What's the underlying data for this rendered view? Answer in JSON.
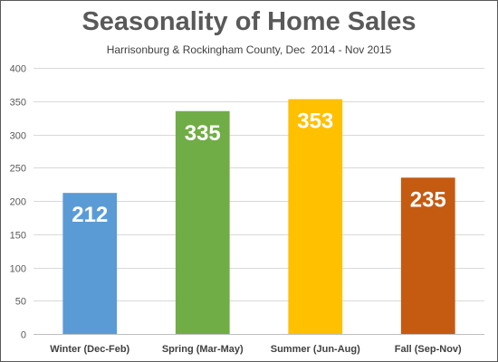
{
  "chart_data": {
    "type": "bar",
    "title": "Seasonality of Home Sales",
    "subtitle": "Harrisonburg & Rockingham County, Dec  2014 - Nov 2015",
    "categories": [
      "Winter (Dec-Feb)",
      "Spring (Mar-May)",
      "Summer (Jun-Aug)",
      "Fall (Sep-Nov)"
    ],
    "values": [
      212,
      335,
      353,
      235
    ],
    "colors": [
      "#5b9bd5",
      "#70ad47",
      "#ffc000",
      "#c55a11"
    ],
    "ylim": [
      0,
      400
    ],
    "yticks": [
      0,
      50,
      100,
      150,
      200,
      250,
      300,
      350,
      400
    ],
    "grid": true,
    "legend": "none",
    "xlabel": "",
    "ylabel": ""
  }
}
